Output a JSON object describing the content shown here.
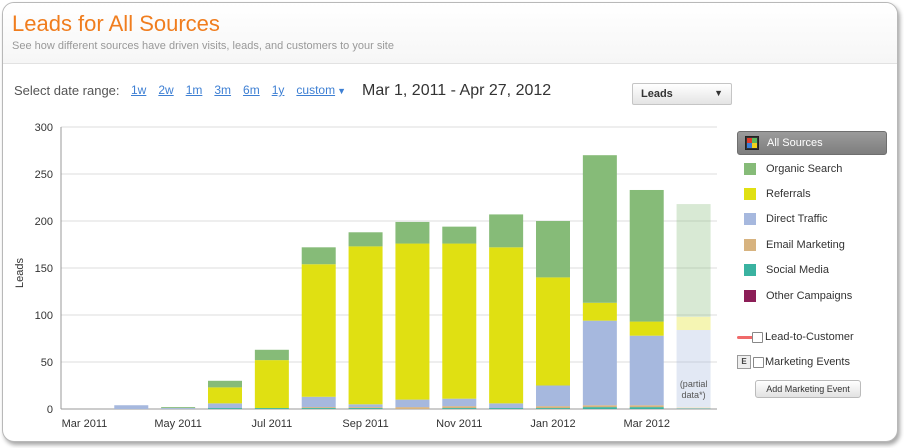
{
  "header": {
    "title": "Leads for All Sources",
    "subtitle": "See how different sources have driven visits, leads, and customers to your site"
  },
  "date_range": {
    "label": "Select date range:",
    "links": [
      "1w",
      "2w",
      "1m",
      "3m",
      "6m",
      "1y"
    ],
    "custom": "custom",
    "current": "Mar 1, 2011 - Apr 27, 2012"
  },
  "metric_dropdown": {
    "selected": "Leads"
  },
  "legend": {
    "all_sources": "All Sources",
    "items": [
      {
        "label": "Organic Search",
        "color": "#86bb78"
      },
      {
        "label": "Referrals",
        "color": "#e0e012"
      },
      {
        "label": "Direct Traffic",
        "color": "#a6b8de"
      },
      {
        "label": "Email Marketing",
        "color": "#d7b37f"
      },
      {
        "label": "Social Media",
        "color": "#3ab2a0"
      },
      {
        "label": "Other Campaigns",
        "color": "#8c1e57"
      }
    ]
  },
  "options": {
    "lead_to_customer": "Lead-to-Customer",
    "marketing_events": "Marketing Events",
    "e_icon": "E",
    "add_event_button": "Add Marketing Event"
  },
  "chart_data": {
    "type": "bar",
    "stacked": true,
    "ylabel": "Leads",
    "ylim": [
      0,
      300
    ],
    "yticks": [
      0,
      50,
      100,
      150,
      200,
      250,
      300
    ],
    "xtick_labels": [
      "Mar 2011",
      "May 2011",
      "Jul 2011",
      "Sep 2011",
      "Nov 2011",
      "Jan 2012",
      "Mar 2012"
    ],
    "categories": [
      "Mar 2011",
      "Apr 2011",
      "May 2011",
      "Jun 2011",
      "Jul 2011",
      "Aug 2011",
      "Sep 2011",
      "Oct 2011",
      "Nov 2011",
      "Dec 2011",
      "Jan 2012",
      "Feb 2012",
      "Mar 2012",
      "Apr 2012"
    ],
    "grid": true,
    "series": [
      {
        "name": "Social Media",
        "color": "#3ab2a0",
        "values": [
          0,
          0,
          0,
          1,
          1,
          1,
          1,
          0,
          1,
          1,
          1,
          2,
          2,
          1
        ]
      },
      {
        "name": "Email Marketing",
        "color": "#d7b37f",
        "values": [
          0,
          0,
          0,
          0,
          0,
          1,
          1,
          2,
          2,
          0,
          2,
          2,
          2,
          1
        ]
      },
      {
        "name": "Direct Traffic",
        "color": "#a6b8de",
        "values": [
          0,
          4,
          1,
          5,
          0,
          11,
          3,
          8,
          8,
          5,
          22,
          90,
          74,
          82
        ]
      },
      {
        "name": "Referrals",
        "color": "#e0e012",
        "values": [
          0,
          0,
          0,
          17,
          51,
          141,
          168,
          166,
          165,
          166,
          115,
          19,
          15,
          14
        ]
      },
      {
        "name": "Organic Search",
        "color": "#86bb78",
        "values": [
          0,
          0,
          1,
          7,
          11,
          18,
          15,
          23,
          18,
          35,
          60,
          157,
          140,
          120
        ]
      }
    ],
    "partial_index": 13,
    "partial_note_lines": [
      "(partial",
      "data*)"
    ]
  }
}
